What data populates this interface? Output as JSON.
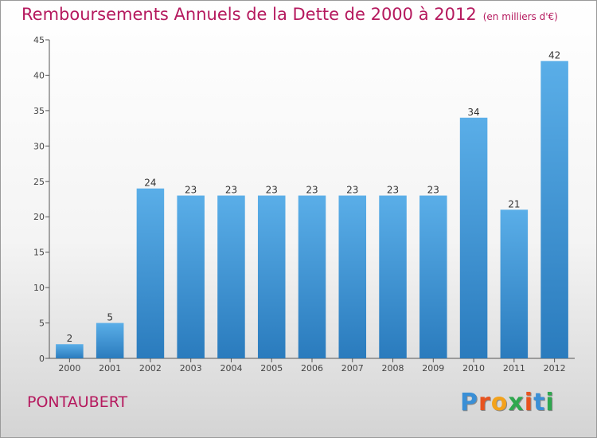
{
  "header": {
    "title": "Remboursements Annuels de la Dette de 2000 à 2012",
    "unit": "(en milliers d'€)"
  },
  "footer": {
    "city": "PONTAUBERT",
    "logo": "Proxiti"
  },
  "colors": {
    "title": "#b5195e",
    "bar_top": "#5aaee8",
    "bar_bottom": "#2a7bbd",
    "axis": "#555555",
    "grid": "#e0e0e0"
  },
  "chart_data": {
    "type": "bar",
    "title": "Remboursements Annuels de la Dette de 2000 à 2012",
    "subtitle": "(en milliers d'€)",
    "xlabel": "",
    "ylabel": "",
    "categories": [
      "2000",
      "2001",
      "2002",
      "2003",
      "2004",
      "2005",
      "2006",
      "2007",
      "2008",
      "2009",
      "2010",
      "2011",
      "2012"
    ],
    "values": [
      2,
      5,
      24,
      23,
      23,
      23,
      23,
      23,
      23,
      23,
      34,
      21,
      42
    ],
    "ylim": [
      0,
      45
    ],
    "yticks": [
      0,
      5,
      10,
      15,
      20,
      25,
      30,
      35,
      40,
      45
    ],
    "grid": false,
    "legend": "none",
    "data_labels": true
  }
}
